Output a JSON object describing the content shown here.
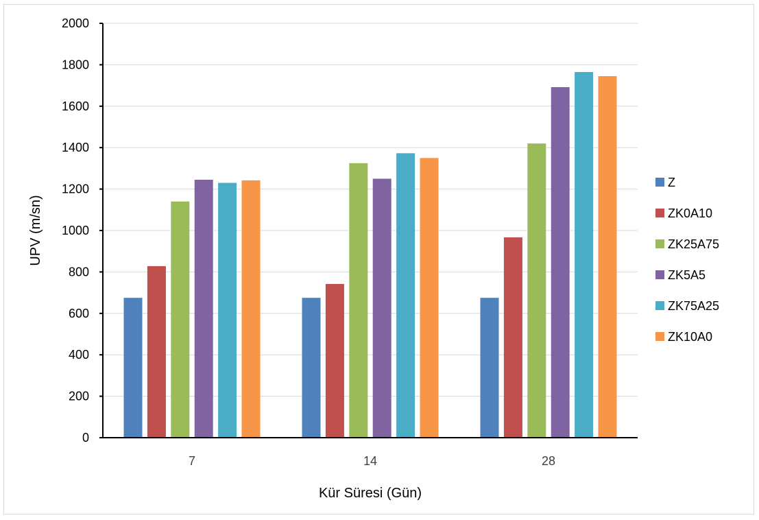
{
  "chart_data": {
    "type": "bar",
    "title": "",
    "xlabel": "Kür Süresi (Gün)",
    "ylabel": "UPV (m/sn)",
    "categories": [
      "7",
      "14",
      "28"
    ],
    "ylim": [
      0,
      2000
    ],
    "yticks": [
      0,
      200,
      400,
      600,
      800,
      1000,
      1200,
      1400,
      1600,
      1800,
      2000
    ],
    "grid": true,
    "legend_position": "right",
    "series": [
      {
        "name": "Z",
        "color": "#4f81bd",
        "values": [
          675,
          675,
          675
        ]
      },
      {
        "name": "ZK0A10",
        "color": "#c0504d",
        "values": [
          828,
          742,
          967
        ]
      },
      {
        "name": "ZK25A75",
        "color": "#9bbb59",
        "values": [
          1140,
          1325,
          1420
        ]
      },
      {
        "name": "ZK5A5",
        "color": "#8064a2",
        "values": [
          1245,
          1250,
          1692
        ]
      },
      {
        "name": "ZK75A25",
        "color": "#4bacc6",
        "values": [
          1230,
          1373,
          1765
        ]
      },
      {
        "name": "ZK10A0",
        "color": "#f79646",
        "values": [
          1242,
          1350,
          1745
        ]
      }
    ]
  }
}
